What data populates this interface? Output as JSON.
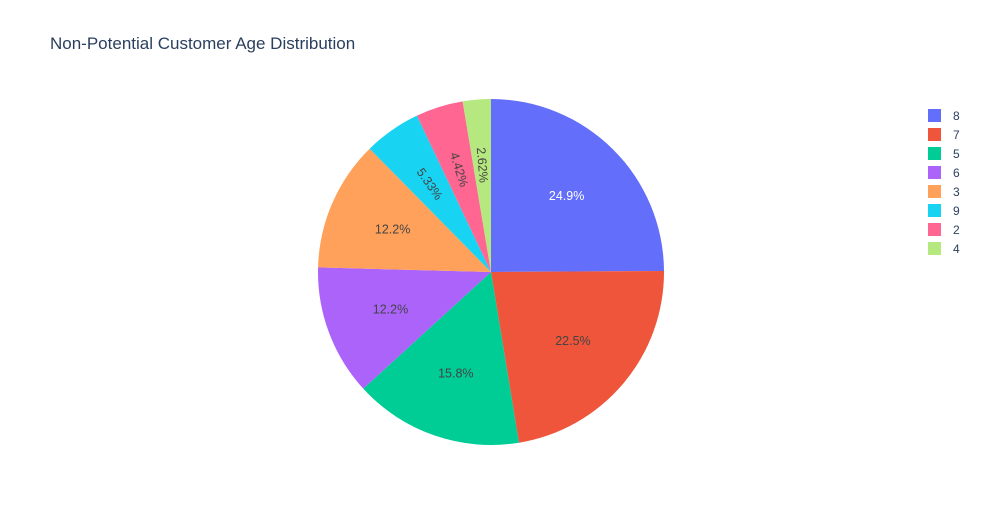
{
  "title": "Non-Potential Customer Age Distribution",
  "chart_data": {
    "type": "pie",
    "title": "Non-Potential Customer Age Distribution",
    "categories": [
      "8",
      "7",
      "5",
      "6",
      "3",
      "9",
      "2",
      "4"
    ],
    "values": [
      24.9,
      22.5,
      15.8,
      12.2,
      12.2,
      5.33,
      4.42,
      2.62
    ],
    "labels": [
      "24.9%",
      "22.5%",
      "15.8%",
      "12.2%",
      "12.2%",
      "5.33%",
      "4.42%",
      "2.62%"
    ],
    "colors": [
      "#636efa",
      "#ef553b",
      "#00cc96",
      "#ab63fa",
      "#ffa15a",
      "#19d3f3",
      "#ff6692",
      "#b6e880"
    ],
    "label_colors": [
      "#ffffff",
      "#444444",
      "#444444",
      "#444444",
      "#444444",
      "#444444",
      "#444444",
      "#444444"
    ],
    "direction": "clockwise",
    "start_angle_deg": 90,
    "legend_position": "top-right"
  }
}
